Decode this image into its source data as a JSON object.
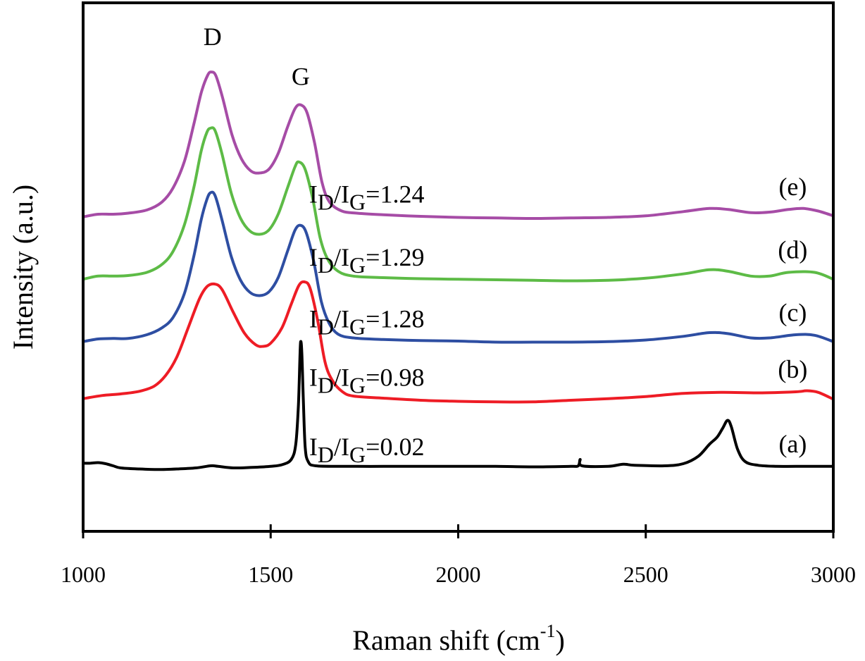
{
  "chart_data": {
    "type": "line",
    "title": "",
    "xlabel": "Raman shift (cm",
    "xlabel_sup": "-1",
    "xlabel_close": ")",
    "ylabel": "Intensity (a.u.)",
    "xlim": [
      1000,
      3000
    ],
    "ylim": [
      0,
      100
    ],
    "x_ticks": [
      1000,
      1500,
      2000,
      2500,
      3000
    ],
    "x_tick_labels": [
      "1000",
      "1500",
      "2000",
      "2500",
      "3000"
    ],
    "y_ticks": [],
    "grid": false,
    "legend": "none (curves labelled inline at right)",
    "peak_annotations": [
      {
        "label": "D",
        "x": 1345,
        "y": 92
      },
      {
        "label": "G",
        "x": 1580,
        "y": 84.5
      }
    ],
    "series": [
      {
        "name": "(a)",
        "color": "#000000",
        "ratio_label": {
          "prefix": "I",
          "sub1": "D",
          "slash": "/I",
          "sub2": "G",
          "value": "=0.02"
        },
        "points": [
          [
            1000,
            12.9
          ],
          [
            1020,
            12.9
          ],
          [
            1040,
            13.0
          ],
          [
            1060,
            12.8
          ],
          [
            1080,
            12.4
          ],
          [
            1100,
            12.0
          ],
          [
            1150,
            11.8
          ],
          [
            1200,
            11.7
          ],
          [
            1250,
            11.8
          ],
          [
            1300,
            12.0
          ],
          [
            1340,
            12.4
          ],
          [
            1360,
            12.3
          ],
          [
            1400,
            12.0
          ],
          [
            1450,
            12.1
          ],
          [
            1500,
            12.3
          ],
          [
            1530,
            12.6
          ],
          [
            1555,
            13.6
          ],
          [
            1567,
            16.5
          ],
          [
            1574,
            24
          ],
          [
            1578,
            33
          ],
          [
            1580,
            35.9
          ],
          [
            1583,
            34
          ],
          [
            1587,
            25
          ],
          [
            1592,
            16
          ],
          [
            1600,
            13.2
          ],
          [
            1620,
            12.4
          ],
          [
            1700,
            12.3
          ],
          [
            1800,
            12.3
          ],
          [
            1900,
            12.3
          ],
          [
            2000,
            12.3
          ],
          [
            2100,
            12.3
          ],
          [
            2200,
            12.2
          ],
          [
            2300,
            12.3
          ],
          [
            2320,
            12.4
          ],
          [
            2325,
            13.6
          ],
          [
            2330,
            12.4
          ],
          [
            2400,
            12.3
          ],
          [
            2440,
            12.7
          ],
          [
            2470,
            12.5
          ],
          [
            2550,
            12.4
          ],
          [
            2600,
            12.8
          ],
          [
            2640,
            14.2
          ],
          [
            2670,
            16.5
          ],
          [
            2690,
            17.8
          ],
          [
            2705,
            19.5
          ],
          [
            2718,
            21.0
          ],
          [
            2728,
            19.8
          ],
          [
            2745,
            15.5
          ],
          [
            2765,
            13.2
          ],
          [
            2800,
            12.5
          ],
          [
            2850,
            12.3
          ],
          [
            2900,
            12.3
          ],
          [
            3000,
            12.3
          ]
        ]
      },
      {
        "name": "(b)",
        "color": "#ee1c25",
        "ratio_label": {
          "prefix": "I",
          "sub1": "D",
          "slash": "/I",
          "sub2": "G",
          "value": "=0.98"
        },
        "points": [
          [
            1000,
            25.1
          ],
          [
            1050,
            25.7
          ],
          [
            1100,
            26.0
          ],
          [
            1150,
            26.5
          ],
          [
            1190,
            27.5
          ],
          [
            1220,
            29.5
          ],
          [
            1250,
            33
          ],
          [
            1280,
            38.5
          ],
          [
            1310,
            44
          ],
          [
            1330,
            46.3
          ],
          [
            1350,
            46.8
          ],
          [
            1370,
            45.8
          ],
          [
            1400,
            41.5
          ],
          [
            1430,
            37.5
          ],
          [
            1460,
            35.3
          ],
          [
            1480,
            35.0
          ],
          [
            1500,
            35.6
          ],
          [
            1530,
            38.5
          ],
          [
            1555,
            43
          ],
          [
            1575,
            46.5
          ],
          [
            1590,
            47.2
          ],
          [
            1605,
            46
          ],
          [
            1625,
            40
          ],
          [
            1645,
            32
          ],
          [
            1665,
            28.5
          ],
          [
            1690,
            26.5
          ],
          [
            1720,
            25.6
          ],
          [
            1800,
            25.2
          ],
          [
            1900,
            24.8
          ],
          [
            2000,
            24.6
          ],
          [
            2100,
            24.5
          ],
          [
            2200,
            24.5
          ],
          [
            2300,
            24.8
          ],
          [
            2400,
            25.1
          ],
          [
            2500,
            25.5
          ],
          [
            2600,
            26.1
          ],
          [
            2700,
            26.3
          ],
          [
            2800,
            26.2
          ],
          [
            2900,
            26.4
          ],
          [
            2930,
            26.6
          ],
          [
            2960,
            26.3
          ],
          [
            3000,
            25.0
          ]
        ]
      },
      {
        "name": "(c)",
        "color": "#2e4ea2",
        "ratio_label": {
          "prefix": "I",
          "sub1": "D",
          "slash": "/I",
          "sub2": "G",
          "value": "=1.28"
        },
        "points": [
          [
            1000,
            35.9
          ],
          [
            1040,
            36.4
          ],
          [
            1080,
            36.5
          ],
          [
            1120,
            36.5
          ],
          [
            1170,
            37.2
          ],
          [
            1210,
            38.5
          ],
          [
            1240,
            40.5
          ],
          [
            1270,
            45
          ],
          [
            1295,
            52
          ],
          [
            1315,
            59
          ],
          [
            1330,
            62.8
          ],
          [
            1340,
            64.1
          ],
          [
            1352,
            63.5
          ],
          [
            1370,
            59
          ],
          [
            1395,
            52
          ],
          [
            1420,
            47.5
          ],
          [
            1445,
            45.2
          ],
          [
            1470,
            44.6
          ],
          [
            1495,
            45.3
          ],
          [
            1520,
            48
          ],
          [
            1545,
            53
          ],
          [
            1565,
            57
          ],
          [
            1580,
            57.9
          ],
          [
            1595,
            56.5
          ],
          [
            1615,
            51
          ],
          [
            1635,
            43.5
          ],
          [
            1655,
            39.5
          ],
          [
            1680,
            37.3
          ],
          [
            1720,
            36.6
          ],
          [
            1800,
            36.3
          ],
          [
            1900,
            36.1
          ],
          [
            2000,
            36.0
          ],
          [
            2100,
            35.8
          ],
          [
            2200,
            35.8
          ],
          [
            2300,
            35.8
          ],
          [
            2400,
            35.9
          ],
          [
            2500,
            36.2
          ],
          [
            2600,
            36.9
          ],
          [
            2670,
            37.6
          ],
          [
            2720,
            37.4
          ],
          [
            2780,
            36.6
          ],
          [
            2830,
            36.6
          ],
          [
            2900,
            37.2
          ],
          [
            2950,
            37.1
          ],
          [
            3000,
            35.9
          ]
        ]
      },
      {
        "name": "(d)",
        "color": "#5dbb46",
        "ratio_label": {
          "prefix": "I",
          "sub1": "D",
          "slash": "/I",
          "sub2": "G",
          "value": "=1.29"
        },
        "points": [
          [
            1000,
            47.7
          ],
          [
            1040,
            48.3
          ],
          [
            1080,
            48.3
          ],
          [
            1120,
            48.4
          ],
          [
            1170,
            49.0
          ],
          [
            1210,
            50.5
          ],
          [
            1240,
            53
          ],
          [
            1270,
            58
          ],
          [
            1295,
            65
          ],
          [
            1315,
            72
          ],
          [
            1330,
            75.5
          ],
          [
            1340,
            76.3
          ],
          [
            1352,
            75.8
          ],
          [
            1370,
            71.5
          ],
          [
            1395,
            64
          ],
          [
            1420,
            59.2
          ],
          [
            1445,
            56.8
          ],
          [
            1470,
            56.2
          ],
          [
            1495,
            57
          ],
          [
            1520,
            60
          ],
          [
            1545,
            65
          ],
          [
            1565,
            69
          ],
          [
            1575,
            69.9
          ],
          [
            1592,
            68.5
          ],
          [
            1612,
            63
          ],
          [
            1632,
            55.5
          ],
          [
            1652,
            51.5
          ],
          [
            1680,
            49.2
          ],
          [
            1720,
            48.3
          ],
          [
            1800,
            48.0
          ],
          [
            1900,
            47.8
          ],
          [
            2000,
            47.7
          ],
          [
            2100,
            47.6
          ],
          [
            2200,
            47.5
          ],
          [
            2300,
            47.4
          ],
          [
            2400,
            47.5
          ],
          [
            2500,
            47.9
          ],
          [
            2600,
            48.7
          ],
          [
            2670,
            49.5
          ],
          [
            2720,
            49.2
          ],
          [
            2780,
            48.3
          ],
          [
            2830,
            48.3
          ],
          [
            2880,
            49.0
          ],
          [
            2950,
            49.0
          ],
          [
            3000,
            47.7
          ]
        ]
      },
      {
        "name": "(e)",
        "color": "#a64ca6",
        "ratio_label": {
          "prefix": "I",
          "sub1": "D",
          "slash": "/I",
          "sub2": "G",
          "value": "=1.24"
        },
        "points": [
          [
            1000,
            59.5
          ],
          [
            1040,
            60.0
          ],
          [
            1080,
            60.0
          ],
          [
            1120,
            60.2
          ],
          [
            1170,
            60.8
          ],
          [
            1210,
            62.3
          ],
          [
            1240,
            65
          ],
          [
            1270,
            70
          ],
          [
            1295,
            77
          ],
          [
            1315,
            83
          ],
          [
            1332,
            86.3
          ],
          [
            1342,
            86.9
          ],
          [
            1354,
            86.2
          ],
          [
            1372,
            82
          ],
          [
            1397,
            75
          ],
          [
            1422,
            70.5
          ],
          [
            1447,
            68.2
          ],
          [
            1470,
            67.8
          ],
          [
            1495,
            68.5
          ],
          [
            1520,
            71.5
          ],
          [
            1545,
            76.5
          ],
          [
            1565,
            80
          ],
          [
            1580,
            80.7
          ],
          [
            1597,
            79.2
          ],
          [
            1617,
            73.5
          ],
          [
            1637,
            66
          ],
          [
            1657,
            62.3
          ],
          [
            1690,
            60.6
          ],
          [
            1730,
            60.2
          ],
          [
            1800,
            59.9
          ],
          [
            1900,
            59.6
          ],
          [
            2000,
            59.4
          ],
          [
            2100,
            59.3
          ],
          [
            2200,
            59.2
          ],
          [
            2300,
            59.3
          ],
          [
            2400,
            59.4
          ],
          [
            2500,
            59.7
          ],
          [
            2600,
            60.5
          ],
          [
            2670,
            61.1
          ],
          [
            2720,
            60.9
          ],
          [
            2780,
            60.3
          ],
          [
            2830,
            60.4
          ],
          [
            2880,
            60.9
          ],
          [
            2920,
            61.1
          ],
          [
            2960,
            60.6
          ],
          [
            3000,
            59.7
          ]
        ]
      }
    ]
  }
}
